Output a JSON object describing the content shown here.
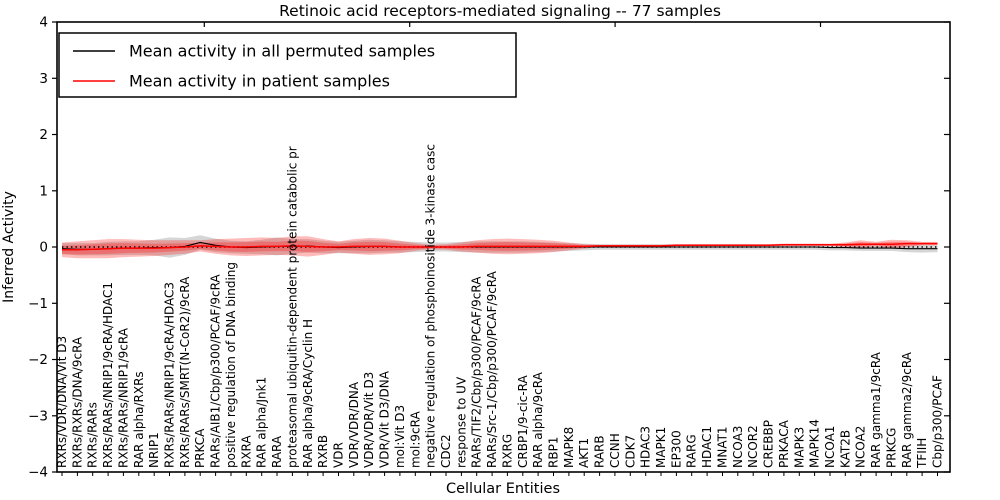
{
  "chart_data": {
    "type": "line",
    "title": "Retinoic acid receptors-mediated signaling -- 77 samples",
    "xlabel": "Cellular Entities",
    "ylabel": "Inferred Activity",
    "ylim": [
      -4,
      4
    ],
    "yticks": [
      -4,
      -3,
      -2,
      -1,
      0,
      1,
      2,
      3,
      4
    ],
    "grid": false,
    "legend_position": "upper-left",
    "legend": [
      {
        "label": "Mean activity in all permuted samples",
        "color": "#000000"
      },
      {
        "label": "Mean activity in patient samples",
        "color": "#ff0000"
      }
    ],
    "colors": {
      "permuted_line": "#000000",
      "patient_line": "#ff0000",
      "patient_band": "#ff0000",
      "permuted_band": "#787878",
      "zero_line": "#000000",
      "axis": "#000000"
    },
    "categories": [
      "RXRs/VDR/DNA/Vit D3",
      "RXRs/RXRs/DNA/9cRA",
      "RXRs/RARs",
      "RXRs/RARs/NRIP1/9cRA/HDAC1",
      "RXRs/RARs/NRIP1/9cRA",
      "RAR alpha/RXRs",
      "NRIP1",
      "RXRs/RARs/NRIP1/9cRA/HDAC3",
      "RXRs/RARs/SMRT(N-CoR2)/9cRA",
      "PRKCA",
      "RARs/AIB1/Cbp/p300/PCAF/9cRA",
      "positive regulation of DNA binding",
      "RXRA",
      "RAR alpha/Jnk1",
      "RARA",
      "proteasomal ubiquitin-dependent protein catabolic pr",
      "RAR alpha/9cRA/Cyclin H",
      "RXRB",
      "VDR",
      "VDR/VDR/DNA",
      "VDR/VDR/Vit D3",
      "VDR/Vit D3/DNA",
      "mol:Vit D3",
      "mol:9cRA",
      "negative regulation of phosphoinositide 3-kinase casc",
      "CDC2",
      "response to UV",
      "RARs/TIF2/Cbp/p300/PCAF/9cRA",
      "RARs/Src-1/Cbp/p300/PCAF/9cRA",
      "RXRG",
      "CRBP1/9-cic-RA",
      "RAR alpha/9cRA",
      "RBP1",
      "MAPK8",
      "AKT1",
      "RARB",
      "CCNH",
      "CDK7",
      "HDAC3",
      "MAPK1",
      "EP300",
      "RARG",
      "HDAC1",
      "MNAT1",
      "NCOA3",
      "NCOR2",
      "CREBBP",
      "PRKACA",
      "MAPK3",
      "MAPK14",
      "NCOA1",
      "KAT2B",
      "NCOA2",
      "RAR gamma1/9cRA",
      "PRKCG",
      "RAR gamma2/9cRA",
      "TFIIH",
      "Cbp/p300/PCAF"
    ],
    "series": [
      {
        "name": "Mean activity in all permuted samples",
        "color": "#000000",
        "values": [
          -0.03,
          -0.04,
          -0.04,
          -0.03,
          -0.02,
          -0.02,
          -0.01,
          -0.01,
          0.01,
          0.08,
          0.03,
          0.0,
          -0.01,
          0.0,
          0.01,
          0.01,
          0.02,
          0.0,
          -0.01,
          0.0,
          0.01,
          0.01,
          0.0,
          0.0,
          0.0,
          0.0,
          0.0,
          0.0,
          0.0,
          0.0,
          0.0,
          0.0,
          0.0,
          0.0,
          0.0,
          0.0,
          0.0,
          0.0,
          0.0,
          0.0,
          0.0,
          0.0,
          0.0,
          0.0,
          0.0,
          0.0,
          0.0,
          0.0,
          0.0,
          0.0,
          -0.01,
          -0.01,
          -0.02,
          -0.02,
          -0.02,
          -0.03,
          -0.03,
          -0.03
        ]
      },
      {
        "name": "Mean activity in patient samples",
        "color": "#ff0000",
        "values": [
          -0.05,
          -0.05,
          -0.04,
          -0.03,
          -0.02,
          -0.02,
          -0.02,
          -0.01,
          0.0,
          0.02,
          0.01,
          0.0,
          0.0,
          0.01,
          0.01,
          0.02,
          0.01,
          0.0,
          0.0,
          0.01,
          0.01,
          0.01,
          0.0,
          0.0,
          0.0,
          0.0,
          0.0,
          0.01,
          0.01,
          0.01,
          0.01,
          0.01,
          0.01,
          0.01,
          0.01,
          0.02,
          0.02,
          0.02,
          0.02,
          0.02,
          0.03,
          0.03,
          0.03,
          0.03,
          0.03,
          0.03,
          0.03,
          0.04,
          0.04,
          0.04,
          0.04,
          0.04,
          0.05,
          0.05,
          0.05,
          0.06,
          0.06,
          0.06
        ]
      }
    ],
    "bands": [
      {
        "name": "permuted-spread",
        "center_series": 0,
        "half_widths": [
          0.1,
          0.11,
          0.11,
          0.12,
          0.12,
          0.12,
          0.14,
          0.18,
          0.15,
          0.13,
          0.12,
          0.11,
          0.11,
          0.13,
          0.16,
          0.13,
          0.12,
          0.11,
          0.1,
          0.11,
          0.12,
          0.11,
          0.1,
          0.09,
          0.08,
          0.08,
          0.09,
          0.1,
          0.1,
          0.1,
          0.1,
          0.09,
          0.08,
          0.07,
          0.06,
          0.05,
          0.05,
          0.05,
          0.05,
          0.05,
          0.05,
          0.05,
          0.05,
          0.05,
          0.05,
          0.05,
          0.05,
          0.05,
          0.05,
          0.05,
          0.05,
          0.05,
          0.05,
          0.05,
          0.05,
          0.06,
          0.07,
          0.06
        ]
      },
      {
        "name": "patient-spread",
        "center_series": 1,
        "half_widths": [
          0.13,
          0.15,
          0.16,
          0.17,
          0.16,
          0.15,
          0.14,
          0.13,
          0.12,
          0.1,
          0.13,
          0.15,
          0.16,
          0.16,
          0.15,
          0.17,
          0.18,
          0.14,
          0.1,
          0.13,
          0.15,
          0.14,
          0.11,
          0.07,
          0.04,
          0.05,
          0.08,
          0.11,
          0.13,
          0.14,
          0.13,
          0.12,
          0.1,
          0.07,
          0.04,
          0.02,
          0.02,
          0.02,
          0.02,
          0.02,
          0.02,
          0.02,
          0.02,
          0.02,
          0.02,
          0.02,
          0.02,
          0.02,
          0.02,
          0.02,
          0.02,
          0.04,
          0.07,
          0.04,
          0.08,
          0.06,
          0.03,
          0.03
        ]
      }
    ]
  }
}
